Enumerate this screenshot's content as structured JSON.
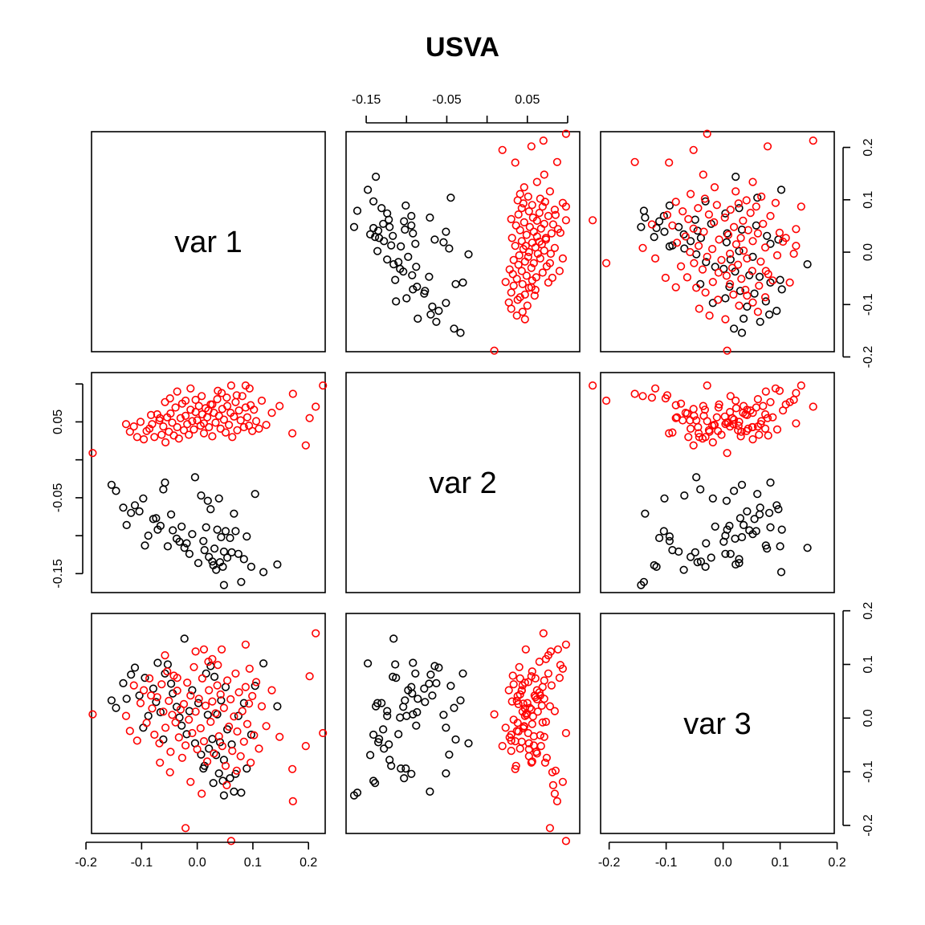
{
  "chart_data": {
    "type": "scatter",
    "subtype": "scatterplot-matrix",
    "title": "USVA",
    "variables": [
      "var 1",
      "var 2",
      "var 3"
    ],
    "axis_ranges": {
      "var 1": [
        -0.19,
        0.23
      ],
      "var 2": [
        -0.175,
        0.115
      ],
      "var 3": [
        -0.215,
        0.195
      ]
    },
    "ticks": {
      "var 1": {
        "values": [
          -0.2,
          -0.1,
          0.0,
          0.1,
          0.2
        ],
        "labels": [
          "-0.2",
          "-0.1",
          "0.0",
          "0.1",
          "0.2"
        ]
      },
      "var 2": {
        "values": [
          -0.15,
          -0.1,
          -0.05,
          0.0,
          0.05,
          0.1
        ],
        "labels": [
          "-0.15",
          "",
          "-0.05",
          "",
          "0.05",
          ""
        ]
      },
      "var 3": {
        "values": [
          -0.2,
          -0.1,
          0.0,
          0.1,
          0.2
        ],
        "labels": [
          "-0.2",
          "-0.1",
          "0.0",
          "0.1",
          "0.2"
        ]
      }
    },
    "series": [
      {
        "color": "#000000",
        "points": [
          [
            -0.127,
            -0.086,
            0.036
          ],
          [
            -0.154,
            -0.033,
            0.033
          ],
          [
            -0.146,
            -0.041,
            0.019
          ],
          [
            -0.133,
            -0.063,
            0.065
          ],
          [
            -0.119,
            -0.07,
            0.081
          ],
          [
            -0.112,
            -0.06,
            0.094
          ],
          [
            -0.104,
            -0.068,
            0.042
          ],
          [
            -0.094,
            -0.113,
            0.075
          ],
          [
            -0.088,
            -0.1,
            0.004
          ],
          [
            -0.079,
            -0.078,
            0.055
          ],
          [
            -0.074,
            -0.077,
            0.03
          ],
          [
            -0.066,
            -0.087,
            0.011
          ],
          [
            -0.058,
            -0.03,
            0.083
          ],
          [
            -0.053,
            -0.114,
            0.1
          ],
          [
            -0.047,
            -0.072,
            0.064
          ],
          [
            -0.044,
            -0.093,
            0.046
          ],
          [
            -0.037,
            -0.104,
            0.021
          ],
          [
            -0.032,
            -0.108,
            0.001
          ],
          [
            -0.028,
            -0.088,
            -0.014
          ],
          [
            -0.023,
            -0.116,
            0.148
          ],
          [
            -0.019,
            -0.11,
            -0.03
          ],
          [
            -0.014,
            -0.124,
            0.013
          ],
          [
            -0.009,
            -0.098,
            0.052
          ],
          [
            -0.004,
            -0.023,
            -0.047
          ],
          [
            0.002,
            -0.136,
            0.028
          ],
          [
            0.007,
            -0.047,
            -0.068
          ],
          [
            0.011,
            -0.107,
            -0.094
          ],
          [
            0.013,
            -0.119,
            -0.089
          ],
          [
            0.016,
            -0.089,
            0.083
          ],
          [
            0.019,
            -0.054,
            0.006
          ],
          [
            0.021,
            -0.128,
            -0.057
          ],
          [
            0.024,
            -0.065,
            0.097
          ],
          [
            0.027,
            -0.134,
            -0.039
          ],
          [
            0.029,
            -0.139,
            -0.121
          ],
          [
            0.031,
            -0.117,
            0.077
          ],
          [
            0.034,
            -0.145,
            -0.069
          ],
          [
            0.036,
            -0.092,
            0.007
          ],
          [
            0.039,
            -0.051,
            -0.103
          ],
          [
            0.041,
            -0.135,
            -0.045
          ],
          [
            0.043,
            -0.102,
            0.033
          ],
          [
            0.046,
            -0.141,
            -0.117
          ],
          [
            0.048,
            -0.121,
            -0.078
          ],
          [
            0.051,
            -0.094,
            0.058
          ],
          [
            0.054,
            -0.129,
            -0.021
          ],
          [
            0.059,
            -0.103,
            -0.112
          ],
          [
            0.062,
            -0.122,
            -0.049
          ],
          [
            0.066,
            -0.071,
            -0.137
          ],
          [
            0.069,
            -0.094,
            -0.104
          ],
          [
            0.074,
            -0.124,
            0.004
          ],
          [
            0.079,
            -0.161,
            -0.139
          ],
          [
            0.084,
            -0.131,
            0.028
          ],
          [
            0.089,
            -0.101,
            -0.094
          ],
          [
            0.097,
            -0.141,
            -0.031
          ],
          [
            0.104,
            -0.045,
            0.06
          ],
          [
            0.119,
            -0.148,
            0.102
          ],
          [
            0.144,
            -0.138,
            0.022
          ],
          [
            -0.071,
            -0.092,
            0.103
          ],
          [
            -0.097,
            -0.051,
            -0.018
          ],
          [
            0.048,
            -0.165,
            -0.144
          ],
          [
            -0.061,
            -0.039,
            -0.04
          ]
        ]
      },
      {
        "color": "#ff0000",
        "points": [
          [
            -0.188,
            0.009,
            0.007
          ],
          [
            -0.128,
            0.047,
            0.004
          ],
          [
            -0.121,
            0.037,
            -0.024
          ],
          [
            -0.114,
            0.044,
            0.061
          ],
          [
            -0.108,
            0.03,
            -0.042
          ],
          [
            -0.102,
            0.05,
            0.028
          ],
          [
            -0.096,
            0.027,
            0.052
          ],
          [
            -0.091,
            0.038,
            -0.009
          ],
          [
            -0.086,
            0.041,
            0.074
          ],
          [
            -0.081,
            0.047,
            0.018
          ],
          [
            -0.077,
            0.03,
            -0.031
          ],
          [
            -0.072,
            0.06,
            0.039
          ],
          [
            -0.068,
            0.052,
            -0.047
          ],
          [
            -0.064,
            0.033,
            0.063
          ],
          [
            -0.061,
            0.044,
            0.012
          ],
          [
            -0.057,
            0.023,
            -0.018
          ],
          [
            -0.054,
            0.056,
            0.087
          ],
          [
            -0.051,
            0.037,
            0.032
          ],
          [
            -0.048,
            0.061,
            -0.063
          ],
          [
            -0.045,
            0.049,
            0.006
          ],
          [
            -0.042,
            0.032,
            0.079
          ],
          [
            -0.039,
            0.069,
            -0.008
          ],
          [
            -0.036,
            0.043,
            0.051
          ],
          [
            -0.033,
            0.028,
            -0.036
          ],
          [
            -0.03,
            0.055,
            0.016
          ],
          [
            -0.027,
            0.074,
            -0.074
          ],
          [
            -0.024,
            0.039,
            0.026
          ],
          [
            -0.021,
            0.058,
            -0.051
          ],
          [
            -0.018,
            0.047,
            0.066
          ],
          [
            -0.015,
            0.033,
            -0.003
          ],
          [
            -0.012,
            0.066,
            0.042
          ],
          [
            -0.009,
            0.051,
            -0.028
          ],
          [
            -0.006,
            0.04,
            0.095
          ],
          [
            -0.003,
            0.063,
            0.012
          ],
          [
            0.0,
            0.052,
            -0.058
          ],
          [
            0.003,
            0.071,
            0.036
          ],
          [
            0.006,
            0.045,
            -0.019
          ],
          [
            0.009,
            0.06,
            0.074
          ],
          [
            0.012,
            0.035,
            -0.043
          ],
          [
            0.015,
            0.068,
            0.023
          ],
          [
            0.018,
            0.056,
            -0.081
          ],
          [
            0.021,
            0.043,
            0.052
          ],
          [
            0.024,
            0.073,
            -0.007
          ],
          [
            0.027,
            0.031,
            0.031
          ],
          [
            0.03,
            0.062,
            -0.066
          ],
          [
            0.033,
            0.049,
            0.009
          ],
          [
            0.036,
            0.08,
            0.061
          ],
          [
            0.039,
            0.058,
            -0.034
          ],
          [
            0.042,
            0.041,
            0.044
          ],
          [
            0.045,
            0.067,
            -0.052
          ],
          [
            0.048,
            0.053,
            0.019
          ],
          [
            0.051,
            0.036,
            -0.089
          ],
          [
            0.054,
            0.071,
            0.07
          ],
          [
            0.057,
            0.046,
            -0.016
          ],
          [
            0.06,
            0.062,
            0.035
          ],
          [
            0.063,
            0.03,
            -0.061
          ],
          [
            0.066,
            0.057,
            0.003
          ],
          [
            0.069,
            0.076,
            0.083
          ],
          [
            0.072,
            0.039,
            -0.025
          ],
          [
            0.075,
            0.065,
            0.048
          ],
          [
            0.078,
            0.052,
            -0.071
          ],
          [
            0.081,
            0.084,
            0.013
          ],
          [
            0.084,
            0.043,
            -0.044
          ],
          [
            0.087,
            0.069,
            0.058
          ],
          [
            0.09,
            0.056,
            -0.011
          ],
          [
            0.093,
            0.045,
            0.027
          ],
          [
            0.096,
            0.072,
            -0.083
          ],
          [
            0.099,
            0.038,
            0.041
          ],
          [
            0.102,
            0.066,
            -0.032
          ],
          [
            0.106,
            0.051,
            0.067
          ],
          [
            0.111,
            0.041,
            -0.057
          ],
          [
            0.116,
            0.078,
            0.022
          ],
          [
            0.124,
            0.046,
            -0.015
          ],
          [
            0.134,
            0.062,
            0.052
          ],
          [
            0.148,
            0.071,
            -0.035
          ],
          [
            0.171,
            0.035,
            -0.095
          ],
          [
            0.172,
            0.087,
            -0.155
          ],
          [
            0.195,
            0.019,
            -0.052
          ],
          [
            0.202,
            0.055,
            0.078
          ],
          [
            0.213,
            0.07,
            0.158
          ],
          [
            0.226,
            0.098,
            -0.028
          ],
          [
            -0.049,
            0.081,
            -0.101
          ],
          [
            -0.012,
            0.094,
            -0.119
          ],
          [
            0.061,
            0.098,
            -0.229
          ],
          [
            -0.021,
            0.078,
            -0.205
          ],
          [
            0.008,
            0.084,
            -0.141
          ],
          [
            0.027,
            0.073,
            0.11
          ],
          [
            0.044,
            0.088,
            0.128
          ],
          [
            0.087,
            0.098,
            0.137
          ],
          [
            0.094,
            0.094,
            0.092
          ],
          [
            -0.036,
            0.09,
            0.075
          ],
          [
            0.053,
            0.082,
            -0.125
          ],
          [
            -0.058,
            0.076,
            0.117
          ],
          [
            0.02,
            0.065,
            0.105
          ],
          [
            -0.003,
            0.079,
            0.124
          ],
          [
            0.071,
            0.085,
            -0.098
          ],
          [
            0.037,
            0.091,
            0.099
          ],
          [
            -0.083,
            0.059,
            0.042
          ],
          [
            -0.067,
            0.055,
            -0.083
          ],
          [
            0.012,
            0.048,
            0.128
          ]
        ]
      }
    ]
  }
}
